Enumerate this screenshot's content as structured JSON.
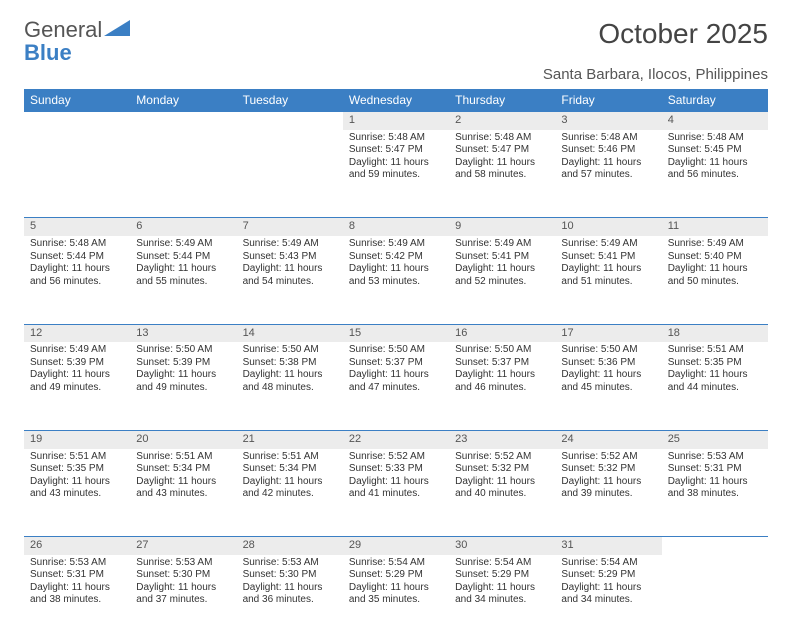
{
  "logo": {
    "line1": "General",
    "line2": "Blue"
  },
  "title": "October 2025",
  "subtitle": "Santa Barbara, Ilocos, Philippines",
  "colors": {
    "header_bg": "#3b7fc4",
    "header_text": "#ffffff",
    "daynum_bg": "#ececec",
    "row_border": "#3b7fc4",
    "text": "#333333",
    "background": "#ffffff"
  },
  "day_headers": [
    "Sunday",
    "Monday",
    "Tuesday",
    "Wednesday",
    "Thursday",
    "Friday",
    "Saturday"
  ],
  "weeks": [
    [
      null,
      null,
      null,
      {
        "n": "1",
        "sr": "5:48 AM",
        "ss": "5:47 PM",
        "dl": "11 hours and 59 minutes."
      },
      {
        "n": "2",
        "sr": "5:48 AM",
        "ss": "5:47 PM",
        "dl": "11 hours and 58 minutes."
      },
      {
        "n": "3",
        "sr": "5:48 AM",
        "ss": "5:46 PM",
        "dl": "11 hours and 57 minutes."
      },
      {
        "n": "4",
        "sr": "5:48 AM",
        "ss": "5:45 PM",
        "dl": "11 hours and 56 minutes."
      }
    ],
    [
      {
        "n": "5",
        "sr": "5:48 AM",
        "ss": "5:44 PM",
        "dl": "11 hours and 56 minutes."
      },
      {
        "n": "6",
        "sr": "5:49 AM",
        "ss": "5:44 PM",
        "dl": "11 hours and 55 minutes."
      },
      {
        "n": "7",
        "sr": "5:49 AM",
        "ss": "5:43 PM",
        "dl": "11 hours and 54 minutes."
      },
      {
        "n": "8",
        "sr": "5:49 AM",
        "ss": "5:42 PM",
        "dl": "11 hours and 53 minutes."
      },
      {
        "n": "9",
        "sr": "5:49 AM",
        "ss": "5:41 PM",
        "dl": "11 hours and 52 minutes."
      },
      {
        "n": "10",
        "sr": "5:49 AM",
        "ss": "5:41 PM",
        "dl": "11 hours and 51 minutes."
      },
      {
        "n": "11",
        "sr": "5:49 AM",
        "ss": "5:40 PM",
        "dl": "11 hours and 50 minutes."
      }
    ],
    [
      {
        "n": "12",
        "sr": "5:49 AM",
        "ss": "5:39 PM",
        "dl": "11 hours and 49 minutes."
      },
      {
        "n": "13",
        "sr": "5:50 AM",
        "ss": "5:39 PM",
        "dl": "11 hours and 49 minutes."
      },
      {
        "n": "14",
        "sr": "5:50 AM",
        "ss": "5:38 PM",
        "dl": "11 hours and 48 minutes."
      },
      {
        "n": "15",
        "sr": "5:50 AM",
        "ss": "5:37 PM",
        "dl": "11 hours and 47 minutes."
      },
      {
        "n": "16",
        "sr": "5:50 AM",
        "ss": "5:37 PM",
        "dl": "11 hours and 46 minutes."
      },
      {
        "n": "17",
        "sr": "5:50 AM",
        "ss": "5:36 PM",
        "dl": "11 hours and 45 minutes."
      },
      {
        "n": "18",
        "sr": "5:51 AM",
        "ss": "5:35 PM",
        "dl": "11 hours and 44 minutes."
      }
    ],
    [
      {
        "n": "19",
        "sr": "5:51 AM",
        "ss": "5:35 PM",
        "dl": "11 hours and 43 minutes."
      },
      {
        "n": "20",
        "sr": "5:51 AM",
        "ss": "5:34 PM",
        "dl": "11 hours and 43 minutes."
      },
      {
        "n": "21",
        "sr": "5:51 AM",
        "ss": "5:34 PM",
        "dl": "11 hours and 42 minutes."
      },
      {
        "n": "22",
        "sr": "5:52 AM",
        "ss": "5:33 PM",
        "dl": "11 hours and 41 minutes."
      },
      {
        "n": "23",
        "sr": "5:52 AM",
        "ss": "5:32 PM",
        "dl": "11 hours and 40 minutes."
      },
      {
        "n": "24",
        "sr": "5:52 AM",
        "ss": "5:32 PM",
        "dl": "11 hours and 39 minutes."
      },
      {
        "n": "25",
        "sr": "5:53 AM",
        "ss": "5:31 PM",
        "dl": "11 hours and 38 minutes."
      }
    ],
    [
      {
        "n": "26",
        "sr": "5:53 AM",
        "ss": "5:31 PM",
        "dl": "11 hours and 38 minutes."
      },
      {
        "n": "27",
        "sr": "5:53 AM",
        "ss": "5:30 PM",
        "dl": "11 hours and 37 minutes."
      },
      {
        "n": "28",
        "sr": "5:53 AM",
        "ss": "5:30 PM",
        "dl": "11 hours and 36 minutes."
      },
      {
        "n": "29",
        "sr": "5:54 AM",
        "ss": "5:29 PM",
        "dl": "11 hours and 35 minutes."
      },
      {
        "n": "30",
        "sr": "5:54 AM",
        "ss": "5:29 PM",
        "dl": "11 hours and 34 minutes."
      },
      {
        "n": "31",
        "sr": "5:54 AM",
        "ss": "5:29 PM",
        "dl": "11 hours and 34 minutes."
      },
      null
    ]
  ],
  "labels": {
    "sunrise": "Sunrise:",
    "sunset": "Sunset:",
    "daylight": "Daylight:"
  }
}
